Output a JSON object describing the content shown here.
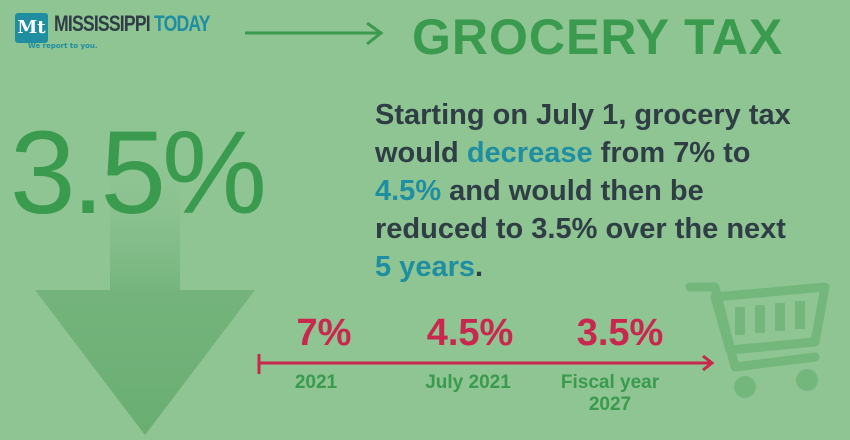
{
  "logo": {
    "mark": "Mt",
    "name_main": "MISSISSIPPI",
    "name_accent": "TODAY",
    "tagline": "We report to you."
  },
  "title": "GROCERY TAX",
  "headline_value": "3.5%",
  "body": {
    "p1": "Starting on July 1, grocery tax would ",
    "p2": "decrease",
    "p3": " from 7% to ",
    "p4": "4.5%",
    "p5": " and would then be reduced to 3.5% over the next ",
    "p6": "5 years",
    "p7": "."
  },
  "timeline": [
    {
      "rate": "7%",
      "label": "2021"
    },
    {
      "rate": "4.5%",
      "label": "July 2021"
    },
    {
      "rate": "3.5%",
      "label": "Fiscal year 2027"
    }
  ],
  "colors": {
    "background": "#8fc493",
    "green": "#3a9a4e",
    "teal": "#1f8ea0",
    "red": "#c8284e",
    "dark": "#2f3e44"
  }
}
